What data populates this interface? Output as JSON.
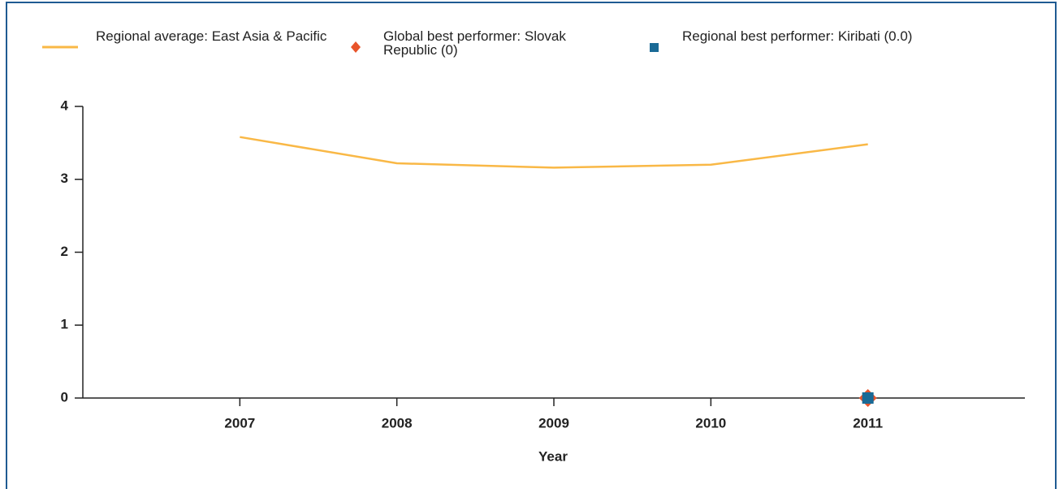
{
  "chart_data": {
    "type": "line",
    "x_label": "Year",
    "xlim": [
      2006,
      2012
    ],
    "xticks": [
      2007,
      2008,
      2009,
      2010,
      2011
    ],
    "ylim": [
      0,
      4
    ],
    "yticks": [
      0,
      1,
      2,
      3,
      4
    ],
    "series": [
      {
        "name": "Regional average: East Asia & Pacific",
        "type": "line",
        "color": "#f9b846",
        "x": [
          2007,
          2008,
          2009,
          2010,
          2011
        ],
        "values": [
          3.58,
          3.22,
          3.16,
          3.2,
          3.48
        ]
      },
      {
        "name": "Global best performer: Slovak Republic (0)",
        "type": "scatter",
        "marker": "diamond",
        "color": "#e8542a",
        "x": [
          2011
        ],
        "values": [
          0
        ]
      },
      {
        "name": "Regional best performer: Kiribati (0.0)",
        "type": "scatter",
        "marker": "square",
        "color": "#1a6a96",
        "x": [
          2011
        ],
        "values": [
          0
        ]
      }
    ]
  }
}
